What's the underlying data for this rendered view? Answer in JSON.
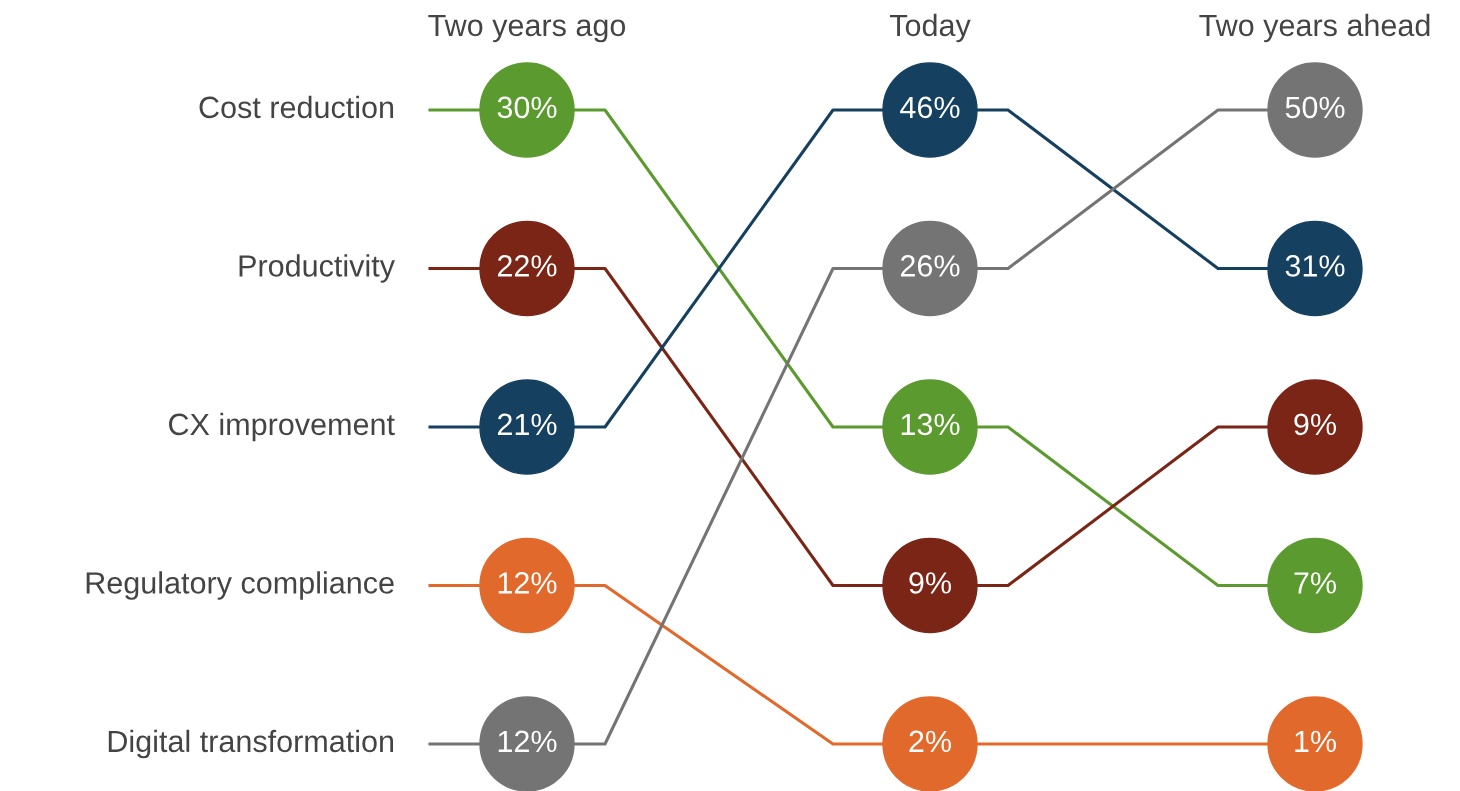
{
  "chart_data": {
    "type": "other",
    "categories": [
      "Two years ago",
      "Today",
      "Two years ahead"
    ],
    "series": [
      {
        "name": "Cost reduction",
        "color": "#5b9a2f",
        "values": [
          30,
          13,
          7
        ],
        "value_labels": [
          "30%",
          "13%",
          "7%"
        ]
      },
      {
        "name": "Productivity",
        "color": "#7a2516",
        "values": [
          22,
          9,
          9
        ],
        "value_labels": [
          "22%",
          "9%",
          "9%"
        ]
      },
      {
        "name": "CX improvement",
        "color": "#16405f",
        "values": [
          21,
          46,
          31
        ],
        "value_labels": [
          "21%",
          "46%",
          "31%"
        ]
      },
      {
        "name": "Regulatory compliance",
        "color": "#e2692c",
        "values": [
          12,
          2,
          1
        ],
        "value_labels": [
          "12%",
          "2%",
          "1%"
        ]
      },
      {
        "name": "Digital transformation",
        "color": "#747474",
        "values": [
          12,
          26,
          50
        ],
        "value_labels": [
          "12%",
          "26%",
          "50%"
        ]
      }
    ]
  }
}
